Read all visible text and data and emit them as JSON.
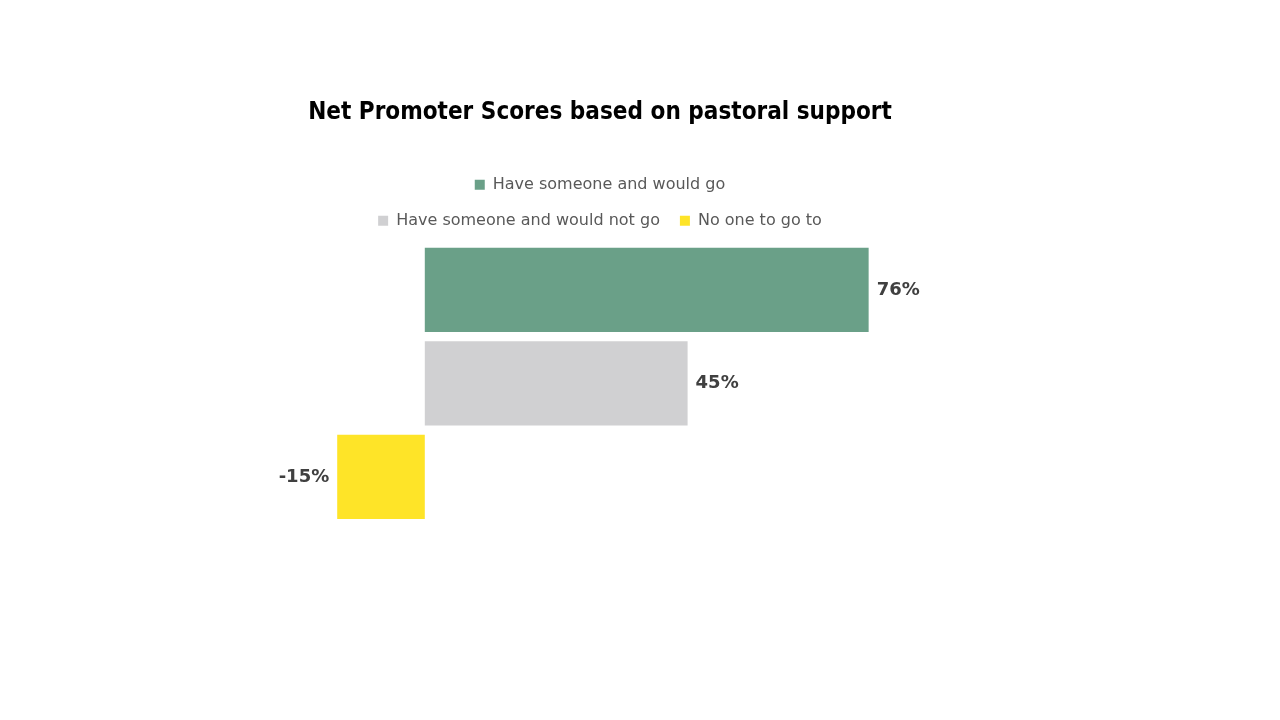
{
  "chart_data": {
    "type": "bar",
    "title": "Net Promoter Scores based on pastoral support",
    "orientation": "horizontal",
    "legend": "top",
    "categories": [
      null
    ],
    "series": [
      {
        "name": "Have someone and would go",
        "color": "#6aa088",
        "values": [
          76
        ],
        "value_labels": [
          "76%"
        ]
      },
      {
        "name": "Have someone and would not go",
        "color": "#d0d0d2",
        "values": [
          45
        ],
        "value_labels": [
          "45%"
        ]
      },
      {
        "name": "No one to go to",
        "color": "#fee428",
        "values": [
          -15
        ],
        "value_labels": [
          "-15%"
        ]
      }
    ]
  }
}
